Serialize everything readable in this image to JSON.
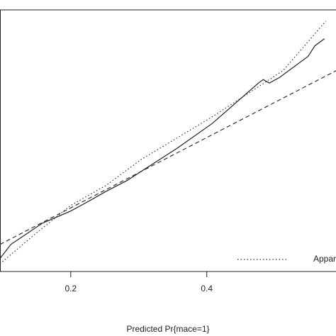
{
  "chart_data": {
    "type": "line",
    "xlabel": "Predicted Pr{mace=1}",
    "xlim": [
      0.096,
      0.59
    ],
    "xticks": [
      0.2,
      0.4
    ],
    "ylim": [
      0.019,
      0.763
    ],
    "series": [
      {
        "name": "Apparent",
        "style": "dotted",
        "color": "#333333",
        "x": [
          0.096,
          0.148,
          0.2,
          0.252,
          0.304,
          0.408,
          0.512,
          0.575
        ],
        "values": [
          0.041,
          0.126,
          0.207,
          0.264,
          0.338,
          0.459,
          0.59,
          0.731
        ]
      },
      {
        "style": "dashed",
        "color": "#333333",
        "x": [
          0.096,
          0.59
        ],
        "values": [
          0.096,
          0.59
        ]
      },
      {
        "style": "solid",
        "color": "#222222",
        "x": [
          0.096,
          0.112,
          0.138,
          0.158,
          0.2,
          0.221,
          0.252,
          0.283,
          0.356,
          0.408,
          0.476,
          0.483,
          0.492,
          0.507,
          0.549,
          0.559,
          0.573
        ],
        "values": [
          0.056,
          0.096,
          0.13,
          0.156,
          0.191,
          0.213,
          0.247,
          0.278,
          0.369,
          0.44,
          0.555,
          0.565,
          0.555,
          0.571,
          0.631,
          0.661,
          0.681
        ]
      }
    ],
    "legend": "bottom-right"
  }
}
